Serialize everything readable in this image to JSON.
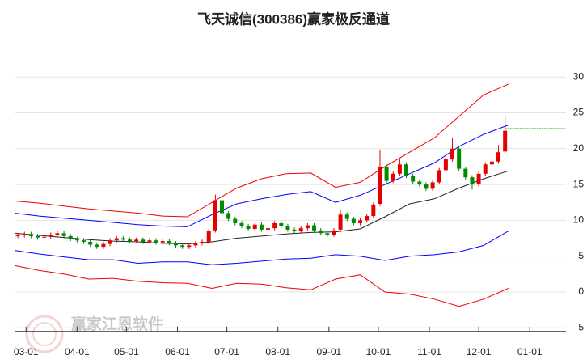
{
  "chart_data": {
    "type": "candlestick",
    "title": "飞天诚信(300386)赢家极反通道",
    "watermark": "赢家江恩软件",
    "xlim": [
      0,
      335
    ],
    "xticks": [
      {
        "value": 7,
        "label": "03-01"
      },
      {
        "value": 38,
        "label": "04-01"
      },
      {
        "value": 68,
        "label": "05-01"
      },
      {
        "value": 99,
        "label": "06-01"
      },
      {
        "value": 129,
        "label": "07-01"
      },
      {
        "value": 160,
        "label": "08-01"
      },
      {
        "value": 191,
        "label": "09-01"
      },
      {
        "value": 221,
        "label": "10-01"
      },
      {
        "value": 252,
        "label": "11-01"
      },
      {
        "value": 282,
        "label": "12-01"
      },
      {
        "value": 313,
        "label": "01-01"
      }
    ],
    "ylim": [
      -5.5,
      35
    ],
    "yticks": [
      -5,
      0,
      5,
      10,
      15,
      20,
      25,
      30
    ],
    "grid": true,
    "up_color": "#e60000",
    "down_color": "#008a00",
    "candles": {
      "x": [
        2,
        6,
        10,
        14,
        18,
        22,
        26,
        30,
        34,
        38,
        42,
        46,
        50,
        54,
        58,
        62,
        66,
        70,
        74,
        78,
        82,
        86,
        90,
        94,
        98,
        102,
        106,
        110,
        114,
        118,
        122,
        126,
        130,
        134,
        138,
        142,
        146,
        150,
        154,
        158,
        162,
        166,
        170,
        174,
        178,
        182,
        186,
        190,
        194,
        198,
        202,
        206,
        210,
        214,
        218,
        222,
        226,
        230,
        234,
        238,
        242,
        246,
        250,
        254,
        258,
        262,
        266,
        270,
        274,
        278,
        282,
        286,
        290,
        294,
        298
      ],
      "open": [
        7.8,
        7.9,
        8.1,
        7.8,
        7.6,
        7.7,
        8.0,
        8.2,
        7.8,
        7.4,
        7.2,
        7.0,
        6.6,
        6.3,
        6.7,
        7.2,
        7.5,
        7.3,
        7.1,
        7.3,
        7.0,
        7.2,
        6.9,
        7.1,
        6.8,
        6.5,
        6.3,
        6.5,
        6.8,
        7.0,
        8.6,
        12.8,
        11.0,
        10.2,
        9.6,
        9.2,
        8.8,
        9.4,
        8.7,
        8.9,
        9.6,
        9.2,
        8.7,
        8.5,
        8.9,
        9.3,
        8.6,
        8.2,
        8.0,
        8.7,
        10.8,
        10.2,
        9.6,
        10.0,
        10.6,
        12.3,
        17.5,
        15.5,
        16.5,
        17.8,
        16.2,
        15.4,
        15.0,
        14.4,
        15.3,
        17.0,
        18.5,
        20.0,
        17.2,
        16.0,
        15.0,
        16.5,
        17.8,
        18.2,
        19.6
      ],
      "high": [
        8.2,
        8.4,
        8.4,
        8.1,
        8.0,
        8.3,
        8.5,
        8.5,
        8.1,
        7.7,
        7.5,
        7.3,
        6.9,
        7.0,
        7.5,
        7.8,
        7.8,
        7.6,
        7.6,
        7.6,
        7.5,
        7.5,
        7.4,
        7.4,
        7.1,
        6.8,
        6.8,
        7.1,
        7.3,
        8.8,
        13.6,
        13.3,
        11.3,
        10.5,
        9.9,
        9.5,
        9.7,
        9.7,
        9.2,
        9.9,
        9.9,
        9.5,
        9.0,
        9.2,
        9.6,
        9.6,
        8.9,
        8.5,
        8.9,
        11.4,
        11.1,
        10.5,
        10.3,
        10.9,
        12.5,
        19.8,
        17.8,
        16.8,
        18.6,
        18.1,
        16.5,
        15.7,
        15.3,
        15.6,
        17.3,
        18.8,
        21.5,
        20.3,
        17.5,
        16.3,
        16.8,
        18.1,
        18.5,
        20.5,
        24.6
      ],
      "low": [
        7.5,
        7.6,
        7.5,
        7.3,
        7.3,
        7.4,
        7.7,
        7.5,
        7.1,
        6.9,
        6.7,
        6.3,
        6.0,
        6.0,
        6.4,
        6.9,
        7.0,
        6.8,
        6.8,
        6.7,
        6.7,
        6.6,
        6.6,
        6.5,
        6.2,
        6.0,
        6.0,
        6.2,
        6.5,
        6.7,
        8.3,
        10.7,
        9.9,
        9.3,
        8.9,
        8.5,
        8.5,
        8.4,
        8.4,
        8.6,
        8.9,
        8.4,
        8.2,
        8.2,
        8.6,
        8.3,
        7.9,
        7.7,
        7.7,
        8.4,
        9.9,
        9.3,
        9.3,
        9.7,
        10.3,
        12.0,
        15.2,
        15.2,
        16.2,
        15.9,
        15.1,
        14.7,
        14.1,
        14.1,
        15.0,
        16.7,
        18.2,
        16.9,
        15.7,
        14.3,
        14.7,
        16.2,
        17.5,
        17.9,
        19.3
      ],
      "close": [
        7.9,
        8.1,
        7.8,
        7.6,
        7.7,
        8.0,
        8.2,
        7.8,
        7.4,
        7.2,
        7.0,
        6.6,
        6.3,
        6.7,
        7.2,
        7.5,
        7.3,
        7.1,
        7.3,
        7.0,
        7.2,
        6.9,
        7.1,
        6.8,
        6.5,
        6.3,
        6.5,
        6.8,
        7.0,
        8.5,
        12.8,
        11.0,
        10.2,
        9.6,
        9.2,
        8.8,
        9.4,
        8.7,
        8.9,
        9.6,
        9.2,
        8.7,
        8.5,
        8.9,
        9.3,
        8.6,
        8.2,
        8.0,
        8.6,
        10.8,
        10.2,
        9.6,
        10.0,
        10.6,
        12.2,
        17.5,
        15.5,
        16.5,
        17.8,
        16.2,
        15.4,
        15.0,
        14.4,
        15.3,
        17.0,
        18.5,
        20.0,
        17.2,
        16.0,
        15.0,
        16.5,
        17.8,
        18.2,
        19.5,
        22.5
      ]
    },
    "line_x": [
      0,
      15,
      30,
      45,
      60,
      75,
      90,
      105,
      120,
      135,
      150,
      165,
      180,
      195,
      210,
      225,
      240,
      255,
      270,
      285,
      300
    ],
    "series": [
      {
        "color": "#f00000",
        "values": [
          12.7,
          12.4,
          12.0,
          11.6,
          11.3,
          11.0,
          10.6,
          10.5,
          12.5,
          14.5,
          15.8,
          16.5,
          16.6,
          14.6,
          15.3,
          17.5,
          19.5,
          21.5,
          24.5,
          27.5,
          29.0
        ]
      },
      {
        "color": "#0000ff",
        "values": [
          11.0,
          10.6,
          10.3,
          10.0,
          9.7,
          9.4,
          9.2,
          9.1,
          10.8,
          12.3,
          13.0,
          13.6,
          14.0,
          12.5,
          13.5,
          15.0,
          16.5,
          18.0,
          20.3,
          22.0,
          23.3
        ]
      },
      {
        "color": "#222222",
        "values": [
          8.2,
          7.9,
          7.6,
          7.3,
          7.1,
          7.0,
          6.8,
          6.7,
          7.0,
          7.5,
          7.8,
          8.1,
          8.3,
          8.4,
          8.8,
          10.5,
          12.3,
          13.0,
          14.5,
          15.8,
          16.9
        ]
      },
      {
        "color": "#0000ff",
        "values": [
          5.8,
          5.3,
          4.9,
          4.5,
          4.5,
          4.0,
          4.2,
          4.2,
          3.8,
          4.0,
          4.3,
          4.6,
          4.7,
          5.2,
          5.0,
          4.4,
          5.0,
          5.2,
          5.6,
          6.5,
          8.5
        ]
      },
      {
        "color": "#f00000",
        "values": [
          3.7,
          3.0,
          2.5,
          1.8,
          1.9,
          1.5,
          1.3,
          1.2,
          0.5,
          1.2,
          1.1,
          0.6,
          0.3,
          1.8,
          2.4,
          0.0,
          -0.3,
          -1.0,
          -2.0,
          -1.0,
          0.5
        ]
      }
    ],
    "reference_line": {
      "value": 22.8,
      "color": "#00a000"
    }
  }
}
